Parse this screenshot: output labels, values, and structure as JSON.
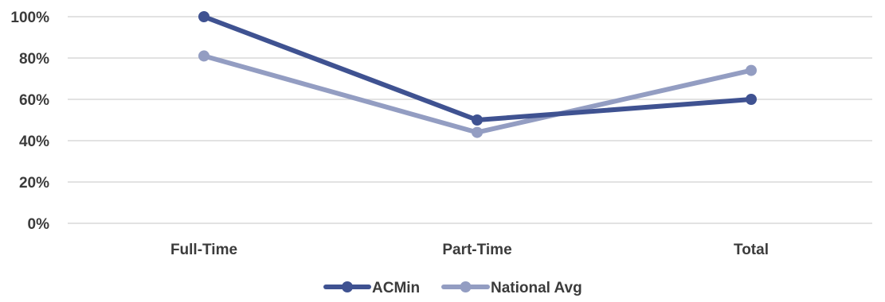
{
  "chart_data": {
    "type": "line",
    "categories": [
      "Full-Time",
      "Part-Time",
      "Total"
    ],
    "series": [
      {
        "name": "ACMin",
        "values": [
          100,
          50,
          60
        ],
        "color": "#3f5291"
      },
      {
        "name": "National Avg",
        "values": [
          81,
          44,
          74
        ],
        "color": "#939dc2"
      }
    ],
    "y_ticks": [
      "0%",
      "20%",
      "40%",
      "60%",
      "80%",
      "100%"
    ],
    "ylim": [
      0,
      100
    ],
    "y_tick_values": [
      0,
      20,
      40,
      60,
      80,
      100
    ],
    "grid": true,
    "legend_position": "bottom"
  }
}
